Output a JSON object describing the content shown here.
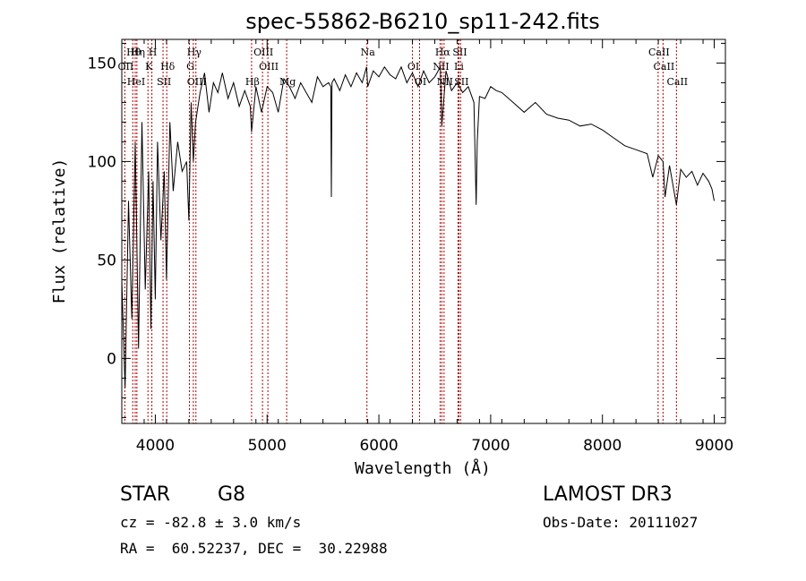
{
  "chart_data": {
    "type": "line",
    "title": "spec-55862-B6210_sp11-242.fits",
    "xlabel": "Wavelength (Å)",
    "ylabel": "Flux (relative)",
    "xlim": [
      3700,
      9100
    ],
    "ylim": [
      -33,
      162
    ],
    "x_ticks": [
      4000,
      5000,
      6000,
      7000,
      8000,
      9000
    ],
    "y_ticks": [
      0,
      50,
      100,
      150
    ],
    "series": [
      {
        "name": "flux",
        "x": [
          3700,
          3730,
          3760,
          3790,
          3820,
          3850,
          3880,
          3910,
          3940,
          3960,
          3980,
          4000,
          4020,
          4050,
          4080,
          4100,
          4130,
          4160,
          4200,
          4240,
          4280,
          4300,
          4320,
          4340,
          4360,
          4400,
          4440,
          4480,
          4520,
          4560,
          4600,
          4650,
          4700,
          4750,
          4800,
          4850,
          4861,
          4900,
          4950,
          5000,
          5050,
          5100,
          5150,
          5200,
          5250,
          5300,
          5350,
          5400,
          5450,
          5500,
          5550,
          5570,
          5575,
          5580,
          5600,
          5650,
          5700,
          5750,
          5800,
          5850,
          5890,
          5900,
          5950,
          6000,
          6050,
          6100,
          6150,
          6200,
          6250,
          6300,
          6350,
          6400,
          6450,
          6500,
          6550,
          6563,
          6600,
          6650,
          6700,
          6750,
          6800,
          6850,
          6870,
          6880,
          6900,
          6950,
          7000,
          7050,
          7100,
          7200,
          7300,
          7400,
          7500,
          7600,
          7700,
          7800,
          7900,
          8000,
          8100,
          8200,
          8300,
          8400,
          8450,
          8500,
          8542,
          8560,
          8600,
          8662,
          8700,
          8750,
          8800,
          8850,
          8900,
          8950,
          8980,
          9000
        ],
        "values": [
          40,
          -15,
          80,
          20,
          110,
          5,
          120,
          35,
          95,
          15,
          90,
          30,
          110,
          60,
          95,
          40,
          120,
          85,
          110,
          95,
          100,
          70,
          130,
          100,
          120,
          135,
          145,
          125,
          140,
          135,
          145,
          132,
          140,
          128,
          136,
          128,
          115,
          138,
          125,
          138,
          135,
          125,
          142,
          138,
          132,
          140,
          135,
          130,
          143,
          138,
          140,
          138,
          82,
          140,
          142,
          136,
          144,
          138,
          145,
          140,
          148,
          138,
          146,
          143,
          148,
          144,
          142,
          148,
          140,
          145,
          138,
          146,
          140,
          143,
          148,
          118,
          146,
          136,
          140,
          135,
          138,
          130,
          78,
          110,
          133,
          132,
          138,
          136,
          135,
          130,
          125,
          130,
          124,
          122,
          121,
          118,
          119,
          116,
          112,
          108,
          106,
          104,
          92,
          103,
          100,
          82,
          98,
          78,
          96,
          92,
          95,
          88,
          94,
          90,
          86,
          80
        ]
      }
    ],
    "line_markers": [
      {
        "label": "Hθ",
        "x": 3798
      },
      {
        "label": "OII",
        "x": 3727
      },
      {
        "label": "HeI",
        "x": 3820
      },
      {
        "label": "Hη",
        "x": 3835
      },
      {
        "label": "K",
        "x": 3934
      },
      {
        "label": "SII",
        "x": 4069
      },
      {
        "label": "H",
        "x": 3969
      },
      {
        "label": "Hδ",
        "x": 4102
      },
      {
        "label": "OIII",
        "x": 4363
      },
      {
        "label": "Hγ",
        "x": 4340
      },
      {
        "label": "G",
        "x": 4305
      },
      {
        "label": "Hβ",
        "x": 4861
      },
      {
        "label": "OIII",
        "x": 4959
      },
      {
        "label": "OIII",
        "x": 5007
      },
      {
        "label": "Mg",
        "x": 5175
      },
      {
        "label": "Na",
        "x": 5893
      },
      {
        "label": "OI",
        "x": 6300
      },
      {
        "label": "OI",
        "x": 6364
      },
      {
        "label": "Hα",
        "x": 6563
      },
      {
        "label": "NII",
        "x": 6548
      },
      {
        "label": "NII",
        "x": 6583
      },
      {
        "label": "SII",
        "x": 6716
      },
      {
        "label": "Li",
        "x": 6708
      },
      {
        "label": "SII",
        "x": 6731
      },
      {
        "label": "CaII",
        "x": 8498
      },
      {
        "label": "CaII",
        "x": 8542
      },
      {
        "label": "CaII",
        "x": 8662
      }
    ],
    "marker_color": "#b00000"
  },
  "info": {
    "class_label": "STAR",
    "subclass": "G8",
    "cz_line": "cz = -82.8 ± 3.0 km/s",
    "radec_line": "RA =  60.52237, DEC =  30.22988",
    "survey": "LAMOST DR3",
    "obs_date": "Obs-Date: 20111027"
  }
}
